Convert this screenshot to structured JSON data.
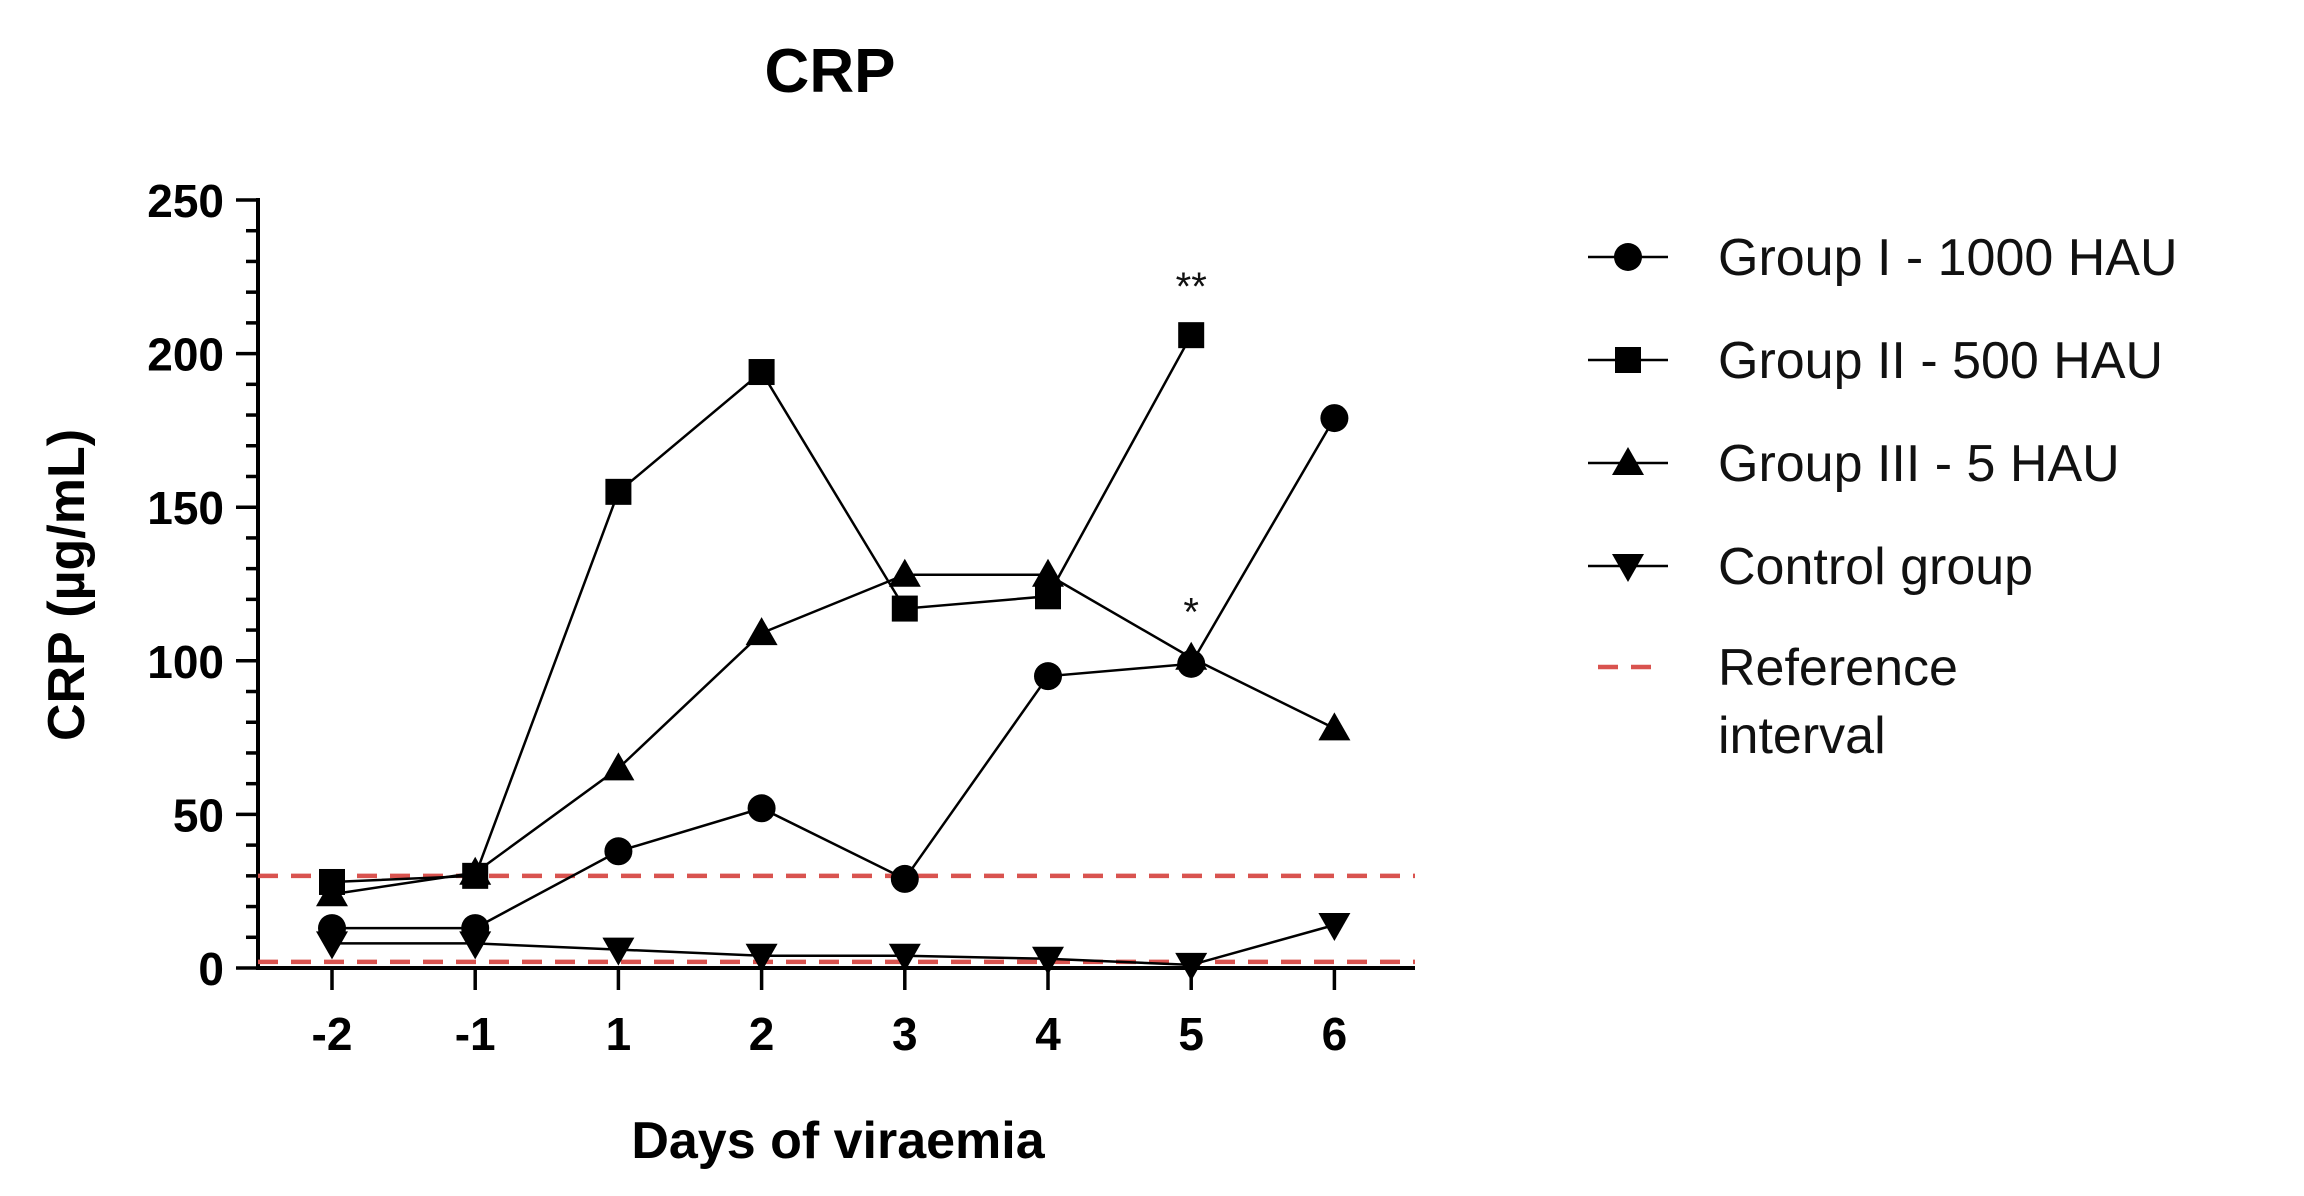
{
  "chart_data": {
    "type": "line",
    "title": "CRP",
    "xlabel": "Days of viraemia",
    "ylabel": "CRP (µg/mL)",
    "categories": [
      "-2",
      "-1",
      "1",
      "2",
      "3",
      "4",
      "5",
      "6"
    ],
    "ylim": [
      0,
      250
    ],
    "yticks": [
      "0",
      "50",
      "100",
      "150",
      "200",
      "250"
    ],
    "grid": false,
    "legend_position": "right",
    "series": [
      {
        "name": "Group I - 1000 HAU",
        "marker": "circle",
        "values": [
          13,
          13,
          38,
          52,
          29,
          95,
          99,
          179
        ]
      },
      {
        "name": "Group II - 500 HAU",
        "marker": "square",
        "values": [
          28,
          30,
          155,
          194,
          117,
          121,
          206,
          null
        ]
      },
      {
        "name": "Group III - 5 HAU",
        "marker": "triangle-up",
        "values": [
          24,
          31,
          65,
          109,
          128,
          128,
          101,
          78
        ]
      },
      {
        "name": "Control group",
        "marker": "triangle-down",
        "values": [
          8,
          8,
          6,
          4,
          4,
          3,
          1,
          14
        ]
      }
    ],
    "reference_interval": {
      "label": "Reference interval",
      "values": [
        2,
        30
      ],
      "color": "#d9534f"
    },
    "annotations": [
      {
        "text": "**",
        "x": "5",
        "y": 222
      },
      {
        "text": "*",
        "x": "5",
        "y": 116
      }
    ]
  }
}
